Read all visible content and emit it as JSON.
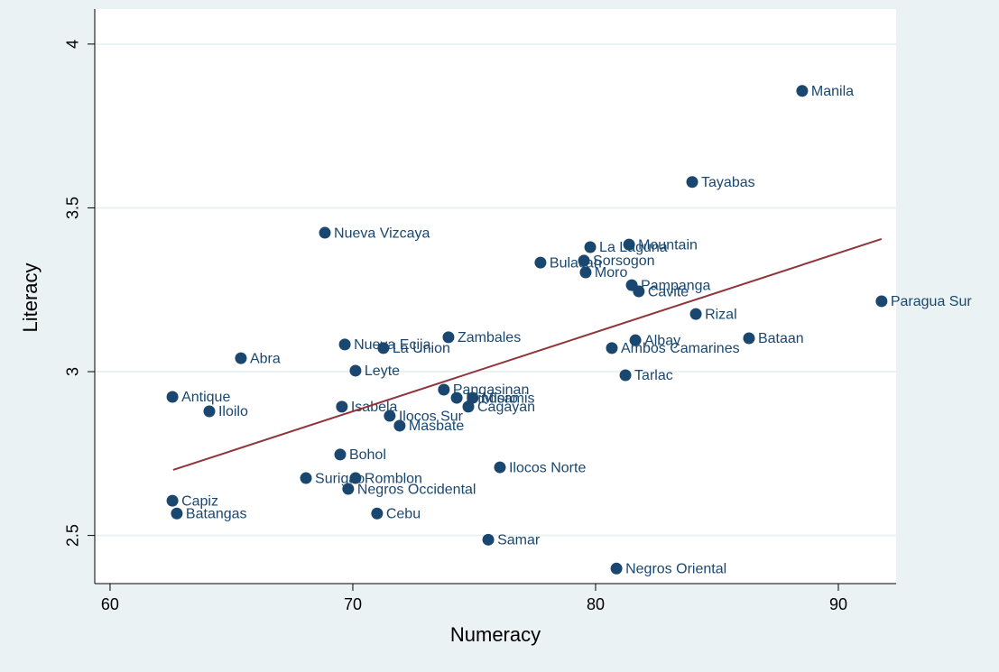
{
  "chart_data": {
    "type": "scatter",
    "xlabel": "Numeracy",
    "ylabel": "Literacy",
    "xlim": [
      59.37,
      92.38
    ],
    "ylim": [
      2.353,
      4.107
    ],
    "xticks": [
      60,
      70,
      80,
      90
    ],
    "yticks": [
      2.5,
      3,
      3.5,
      4
    ],
    "grid": true,
    "color": "#1a476f",
    "labels": [
      "Manila",
      "Tayabas",
      "Nueva Vizcaya",
      "La Laguna",
      "Mountain",
      "Bulacan",
      "Sorsogon",
      "Moro",
      "Pampanga",
      "Cavite",
      "Paragua Sur",
      "Rizal",
      "Bataan",
      "Albay",
      "Ambos Camarines",
      "Zambales",
      "Nueva Ecija",
      "La Union",
      "Abra",
      "Leyte",
      "Tarlac",
      "Antique",
      "Iloilo",
      "Pangasinan",
      "Mindoro",
      "Misamis",
      "Cagayan",
      "Isabela",
      "Ilocos Sur",
      "Masbate",
      "Bohol",
      "Ilocos Norte",
      "Surigao",
      "Romblon",
      "Negros Occidental",
      "Capiz",
      "Batangas",
      "Cebu",
      "Samar",
      "Negros Oriental"
    ],
    "x": [
      88.51,
      83.98,
      68.85,
      79.78,
      81.38,
      77.73,
      79.52,
      79.59,
      81.49,
      81.78,
      91.78,
      84.13,
      86.32,
      81.64,
      80.67,
      73.94,
      69.67,
      71.26,
      65.39,
      70.11,
      81.23,
      62.57,
      64.09,
      73.75,
      74.28,
      74.94,
      74.76,
      69.55,
      71.52,
      71.93,
      69.48,
      76.06,
      68.07,
      70.11,
      69.81,
      62.57,
      62.75,
      71.0,
      75.58,
      80.86
    ],
    "values": [
      3.857,
      3.579,
      3.424,
      3.38,
      3.388,
      3.333,
      3.339,
      3.303,
      3.264,
      3.245,
      3.215,
      3.176,
      3.102,
      3.096,
      3.072,
      3.105,
      3.083,
      3.072,
      3.041,
      3.003,
      2.989,
      2.923,
      2.879,
      2.945,
      2.92,
      2.92,
      2.893,
      2.893,
      2.865,
      2.835,
      2.747,
      2.708,
      2.675,
      2.675,
      2.642,
      2.606,
      2.567,
      2.567,
      2.487,
      2.399
    ],
    "fit": {
      "color": "#90353b",
      "x": [
        62.6,
        91.78
      ],
      "values": [
        2.7,
        3.405
      ]
    }
  }
}
